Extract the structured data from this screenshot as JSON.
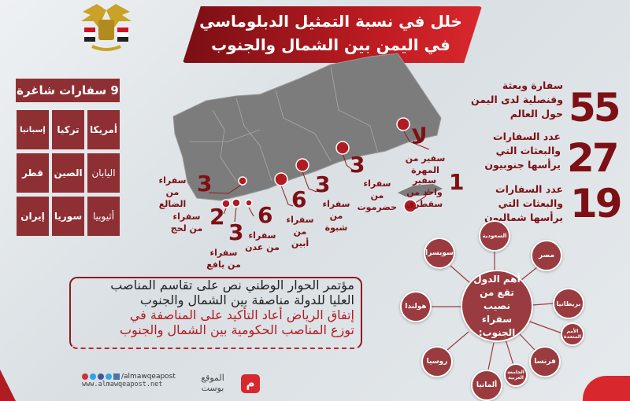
{
  "title": {
    "line1": "خلل في نسبة التمثيل الدبلوماسي",
    "line2": "في اليمن بين الشمال والجنوب"
  },
  "vacant": {
    "heading": "9 سفارات شاغرة",
    "countries": [
      "أمريكا",
      "تركيا",
      "إسبانيا",
      "اليابان",
      "الصين",
      "قطر",
      "أثيوبيا",
      "سوريا",
      "إيران"
    ]
  },
  "stats": [
    {
      "value": "55",
      "text": "سفارة وبعثة وقنصلية لدى اليمن حول العالم"
    },
    {
      "value": "27",
      "text": "عدد السفارات والبعثات التي يرأسها جنوبيون"
    },
    {
      "value": "19",
      "text": "عدد السفارات والبعثات التي يرأسها شماليون"
    }
  ],
  "map_pins": {
    "mahra": {
      "num": "لا",
      "label": "سفير من المهرة"
    },
    "socotra": {
      "num": "1",
      "label": "سفير واحد من سقطرى"
    },
    "hadramawt": {
      "num": "3",
      "label": "سفراء من حضرموت"
    },
    "shabwa": {
      "num": "3",
      "label": "سفراء من شبوة"
    },
    "abyan": {
      "num": "6",
      "label": "سفراء من أبين"
    },
    "aden": {
      "num": "6",
      "label": "سفراء من عدن"
    },
    "yafa": {
      "num": "3",
      "label": "سفراء من يافع"
    },
    "lahj": {
      "num": "2",
      "label": "سفراء من لحج"
    },
    "dhale": {
      "num": "3",
      "label": "سفراء من الضالع"
    }
  },
  "network": {
    "center": "أهم الدول تقع من نصيب سفراء الجنوب:",
    "nodes": [
      "السعودية",
      "مصر",
      "بريطانيا",
      "الأمم المتحدة",
      "فرنسا",
      "الجامعة العربية",
      "ألمانيا",
      "روسيا",
      "هولندا",
      "سويسرا"
    ]
  },
  "notice": {
    "line1": "مؤتمر الحوار الوطني نص على تقاسم المناصب",
    "line2": "العليا للدولة مناصفة بين الشمال والجنوب",
    "line3": "إتفاق الرياض أعاد التأكيد على المناصفة في",
    "line4": "توزع المناصب الحكومية بين الشمال والجنوب"
  },
  "footer": {
    "handle": "/almawqeapost",
    "url": "www.almawqeapost.net",
    "brand_line1": "الموقع",
    "brand_line2": "بوست",
    "logo_letter": "م"
  },
  "colors": {
    "primary": "#8e2f33",
    "accent": "#c21d23",
    "map": "#7a7a7a"
  }
}
